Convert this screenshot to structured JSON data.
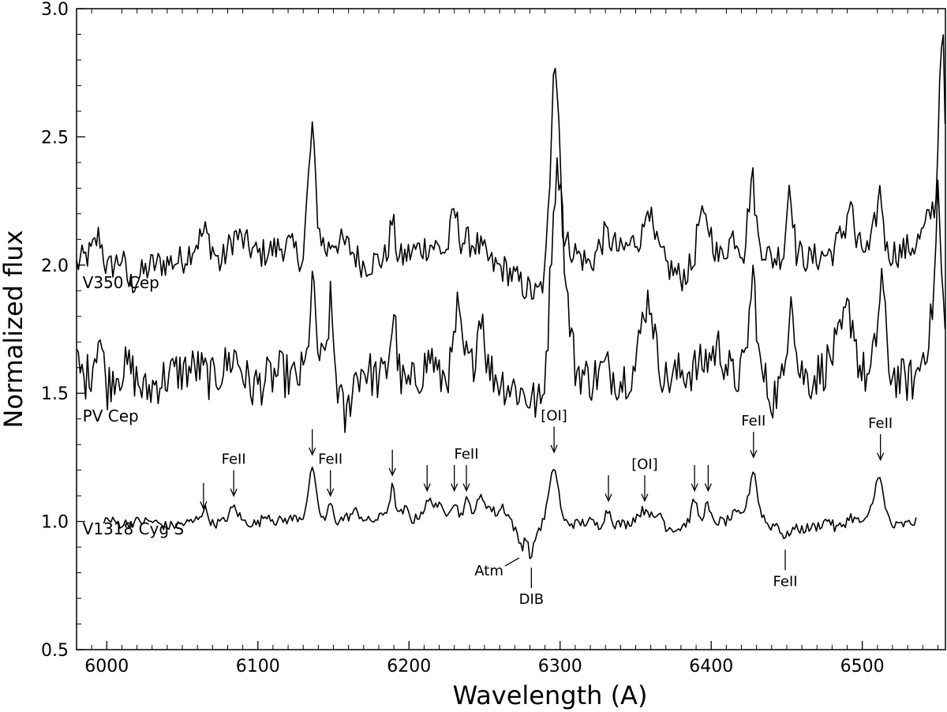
{
  "chart_data": {
    "type": "line",
    "xlabel": "Wavelength (A)",
    "ylabel": "Normalized flux",
    "xlim": [
      5980,
      6555
    ],
    "ylim": [
      0.5,
      3.0
    ],
    "x_ticks": [
      6000,
      6100,
      6200,
      6300,
      6400,
      6500
    ],
    "y_ticks": [
      "0.5",
      "1.0",
      "1.5",
      "2.0",
      "2.5",
      "3.0"
    ],
    "grid": false,
    "series": [
      {
        "name": "V350 Cep",
        "color": "#000000",
        "noise": 0.06,
        "label_at": [
          5984,
          1.91
        ],
        "points": [
          [
            5980,
            2.0
          ],
          [
            5990,
            2.05
          ],
          [
            5995,
            2.12
          ],
          [
            6000,
            1.98
          ],
          [
            6010,
            2.03
          ],
          [
            6015,
            1.92
          ],
          [
            6030,
            2.0
          ],
          [
            6050,
            2.02
          ],
          [
            6065,
            2.13
          ],
          [
            6075,
            2.0
          ],
          [
            6085,
            2.12
          ],
          [
            6100,
            2.04
          ],
          [
            6120,
            2.08
          ],
          [
            6130,
            2.02
          ],
          [
            6133,
            2.3
          ],
          [
            6136,
            2.54
          ],
          [
            6140,
            2.15
          ],
          [
            6145,
            2.05
          ],
          [
            6150,
            2.1
          ],
          [
            6160,
            2.07
          ],
          [
            6170,
            2.0
          ],
          [
            6185,
            2.03
          ],
          [
            6189,
            2.18
          ],
          [
            6193,
            2.02
          ],
          [
            6205,
            2.06
          ],
          [
            6215,
            2.08
          ],
          [
            6225,
            2.05
          ],
          [
            6230,
            2.22
          ],
          [
            6234,
            2.1
          ],
          [
            6245,
            2.08
          ],
          [
            6255,
            2.0
          ],
          [
            6265,
            1.98
          ],
          [
            6275,
            1.92
          ],
          [
            6285,
            1.88
          ],
          [
            6290,
            1.95
          ],
          [
            6293,
            2.3
          ],
          [
            6296,
            2.87
          ],
          [
            6299,
            2.6
          ],
          [
            6302,
            2.1
          ],
          [
            6310,
            2.05
          ],
          [
            6320,
            2.0
          ],
          [
            6330,
            2.12
          ],
          [
            6340,
            2.05
          ],
          [
            6355,
            2.12
          ],
          [
            6358,
            2.27
          ],
          [
            6362,
            2.1
          ],
          [
            6370,
            2.0
          ],
          [
            6380,
            1.95
          ],
          [
            6388,
            2.0
          ],
          [
            6392,
            2.18
          ],
          [
            6398,
            2.16
          ],
          [
            6405,
            2.02
          ],
          [
            6415,
            2.12
          ],
          [
            6422,
            2.05
          ],
          [
            6427,
            2.37
          ],
          [
            6431,
            2.1
          ],
          [
            6440,
            2.02
          ],
          [
            6448,
            2.05
          ],
          [
            6452,
            2.35
          ],
          [
            6456,
            2.05
          ],
          [
            6465,
            2.02
          ],
          [
            6480,
            2.05
          ],
          [
            6489,
            2.15
          ],
          [
            6492,
            2.27
          ],
          [
            6496,
            2.08
          ],
          [
            6505,
            2.05
          ],
          [
            6508,
            2.15
          ],
          [
            6512,
            2.3
          ],
          [
            6516,
            2.05
          ],
          [
            6525,
            2.05
          ],
          [
            6535,
            2.08
          ],
          [
            6540,
            2.12
          ],
          [
            6545,
            2.2
          ],
          [
            6549,
            2.25
          ],
          [
            6551,
            2.7
          ],
          [
            6553,
            2.99
          ],
          [
            6555,
            2.5
          ]
        ]
      },
      {
        "name": "PV Cep",
        "color": "#000000",
        "noise": 0.09,
        "label_at": [
          5984,
          1.39
        ],
        "points": [
          [
            5980,
            1.62
          ],
          [
            5985,
            1.55
          ],
          [
            5990,
            1.6
          ],
          [
            5995,
            1.74
          ],
          [
            6000,
            1.52
          ],
          [
            6005,
            1.58
          ],
          [
            6015,
            1.6
          ],
          [
            6025,
            1.5
          ],
          [
            6035,
            1.55
          ],
          [
            6045,
            1.58
          ],
          [
            6060,
            1.6
          ],
          [
            6070,
            1.55
          ],
          [
            6085,
            1.65
          ],
          [
            6095,
            1.52
          ],
          [
            6105,
            1.55
          ],
          [
            6115,
            1.58
          ],
          [
            6125,
            1.55
          ],
          [
            6132,
            1.6
          ],
          [
            6136,
            1.94
          ],
          [
            6140,
            1.65
          ],
          [
            6144,
            1.6
          ],
          [
            6148,
            1.85
          ],
          [
            6152,
            1.55
          ],
          [
            6158,
            1.38
          ],
          [
            6163,
            1.55
          ],
          [
            6170,
            1.6
          ],
          [
            6180,
            1.55
          ],
          [
            6185,
            1.58
          ],
          [
            6190,
            1.82
          ],
          [
            6194,
            1.55
          ],
          [
            6200,
            1.52
          ],
          [
            6210,
            1.6
          ],
          [
            6215,
            1.65
          ],
          [
            6220,
            1.55
          ],
          [
            6228,
            1.6
          ],
          [
            6232,
            1.82
          ],
          [
            6236,
            1.65
          ],
          [
            6242,
            1.6
          ],
          [
            6248,
            1.85
          ],
          [
            6252,
            1.6
          ],
          [
            6260,
            1.55
          ],
          [
            6270,
            1.52
          ],
          [
            6280,
            1.48
          ],
          [
            6288,
            1.45
          ],
          [
            6292,
            1.75
          ],
          [
            6296,
            2.3
          ],
          [
            6300,
            2.4
          ],
          [
            6304,
            1.9
          ],
          [
            6310,
            1.6
          ],
          [
            6320,
            1.55
          ],
          [
            6330,
            1.6
          ],
          [
            6340,
            1.55
          ],
          [
            6350,
            1.6
          ],
          [
            6356,
            1.85
          ],
          [
            6360,
            1.87
          ],
          [
            6364,
            1.65
          ],
          [
            6370,
            1.55
          ],
          [
            6380,
            1.58
          ],
          [
            6392,
            1.6
          ],
          [
            6405,
            1.68
          ],
          [
            6415,
            1.55
          ],
          [
            6422,
            1.6
          ],
          [
            6428,
            1.98
          ],
          [
            6432,
            1.6
          ],
          [
            6440,
            1.48
          ],
          [
            6448,
            1.55
          ],
          [
            6453,
            1.95
          ],
          [
            6457,
            1.6
          ],
          [
            6465,
            1.55
          ],
          [
            6475,
            1.6
          ],
          [
            6485,
            1.7
          ],
          [
            6490,
            1.82
          ],
          [
            6494,
            1.78
          ],
          [
            6498,
            1.6
          ],
          [
            6505,
            1.55
          ],
          [
            6509,
            1.7
          ],
          [
            6513,
            1.98
          ],
          [
            6517,
            1.6
          ],
          [
            6525,
            1.55
          ],
          [
            6535,
            1.55
          ],
          [
            6540,
            1.65
          ],
          [
            6545,
            1.75
          ],
          [
            6548,
            1.95
          ],
          [
            6550,
            2.3
          ],
          [
            6553,
            1.9
          ],
          [
            6555,
            1.7
          ]
        ]
      },
      {
        "name": "V1318 Cyg S",
        "color": "#000000",
        "noise": 0.02,
        "label_at": [
          5984,
          0.95
        ],
        "points": [
          [
            5998,
            1.01
          ],
          [
            6010,
            0.99
          ],
          [
            6020,
            1.0
          ],
          [
            6030,
            1.0
          ],
          [
            6040,
            0.98
          ],
          [
            6050,
            0.99
          ],
          [
            6058,
            1.0
          ],
          [
            6065,
            1.05
          ],
          [
            6070,
            0.99
          ],
          [
            6078,
            1.0
          ],
          [
            6084,
            1.06
          ],
          [
            6090,
            1.0
          ],
          [
            6100,
            0.99
          ],
          [
            6106,
            1.03
          ],
          [
            6112,
            1.0
          ],
          [
            6122,
            1.01
          ],
          [
            6130,
            1.02
          ],
          [
            6133,
            1.1
          ],
          [
            6136,
            1.22
          ],
          [
            6140,
            1.05
          ],
          [
            6144,
            1.0
          ],
          [
            6148,
            1.07
          ],
          [
            6152,
            1.0
          ],
          [
            6160,
            1.02
          ],
          [
            6165,
            1.04
          ],
          [
            6172,
            1.0
          ],
          [
            6180,
            1.01
          ],
          [
            6186,
            1.05
          ],
          [
            6189,
            1.14
          ],
          [
            6193,
            1.02
          ],
          [
            6198,
            1.05
          ],
          [
            6203,
            1.0
          ],
          [
            6210,
            1.05
          ],
          [
            6213,
            1.08
          ],
          [
            6218,
            1.07
          ],
          [
            6224,
            1.03
          ],
          [
            6230,
            1.08
          ],
          [
            6234,
            1.02
          ],
          [
            6238,
            1.08
          ],
          [
            6243,
            1.04
          ],
          [
            6248,
            1.1
          ],
          [
            6252,
            1.06
          ],
          [
            6258,
            1.03
          ],
          [
            6262,
            1.06
          ],
          [
            6268,
            1.0
          ],
          [
            6273,
            0.92
          ],
          [
            6275,
            0.9
          ],
          [
            6277,
            0.95
          ],
          [
            6281,
            0.85
          ],
          [
            6284,
            0.95
          ],
          [
            6289,
            1.0
          ],
          [
            6293,
            1.12
          ],
          [
            6296,
            1.23
          ],
          [
            6299,
            1.12
          ],
          [
            6302,
            1.0
          ],
          [
            6310,
            0.99
          ],
          [
            6320,
            1.0
          ],
          [
            6326,
            0.98
          ],
          [
            6332,
            1.05
          ],
          [
            6336,
            0.99
          ],
          [
            6345,
            0.99
          ],
          [
            6354,
            1.04
          ],
          [
            6358,
            1.05
          ],
          [
            6362,
            1.0
          ],
          [
            6366,
            1.04
          ],
          [
            6370,
            0.98
          ],
          [
            6378,
            0.97
          ],
          [
            6385,
            1.0
          ],
          [
            6389,
            1.09
          ],
          [
            6393,
            1.0
          ],
          [
            6397,
            1.07
          ],
          [
            6401,
            1.0
          ],
          [
            6410,
            1.0
          ],
          [
            6416,
            1.03
          ],
          [
            6420,
            1.02
          ],
          [
            6424,
            1.08
          ],
          [
            6428,
            1.22
          ],
          [
            6432,
            1.05
          ],
          [
            6438,
            0.98
          ],
          [
            6444,
            0.99
          ],
          [
            6449,
            0.93
          ],
          [
            6453,
            0.97
          ],
          [
            6460,
            0.97
          ],
          [
            6470,
            0.98
          ],
          [
            6478,
            1.01
          ],
          [
            6482,
            0.97
          ],
          [
            6488,
            0.99
          ],
          [
            6492,
            1.02
          ],
          [
            6497,
            1.0
          ],
          [
            6503,
            1.0
          ],
          [
            6508,
            1.1
          ],
          [
            6511,
            1.21
          ],
          [
            6515,
            1.05
          ],
          [
            6520,
            0.98
          ],
          [
            6530,
            0.99
          ],
          [
            6536,
            1.0
          ]
        ]
      }
    ],
    "annotations": [
      {
        "x": 6064,
        "dir": "down",
        "tip": 1.05,
        "length": 0.1,
        "label": ""
      },
      {
        "x": 6084,
        "dir": "down",
        "tip": 1.1,
        "length": 0.1,
        "label": "FeII"
      },
      {
        "x": 6136,
        "dir": "down",
        "tip": 1.26,
        "length": 0.1,
        "label": ""
      },
      {
        "x": 6148,
        "dir": "down",
        "tip": 1.1,
        "length": 0.1,
        "label": "FeII"
      },
      {
        "x": 6189,
        "dir": "down",
        "tip": 1.18,
        "length": 0.1,
        "label": ""
      },
      {
        "x": 6212,
        "dir": "down",
        "tip": 1.12,
        "length": 0.1,
        "label": ""
      },
      {
        "x": 6230,
        "dir": "down",
        "tip": 1.12,
        "length": 0.1,
        "label": ""
      },
      {
        "x": 6238,
        "dir": "down",
        "tip": 1.12,
        "length": 0.1,
        "label": "FeII"
      },
      {
        "x": 6296,
        "dir": "down",
        "tip": 1.27,
        "length": 0.1,
        "label": "[OI]"
      },
      {
        "x": 6332,
        "dir": "down",
        "tip": 1.08,
        "length": 0.1,
        "label": ""
      },
      {
        "x": 6356,
        "dir": "down",
        "tip": 1.08,
        "length": 0.1,
        "label": "[OI]"
      },
      {
        "x": 6389,
        "dir": "down",
        "tip": 1.12,
        "length": 0.1,
        "label": ""
      },
      {
        "x": 6398,
        "dir": "down",
        "tip": 1.12,
        "length": 0.1,
        "label": ""
      },
      {
        "x": 6428,
        "dir": "down",
        "tip": 1.25,
        "length": 0.1,
        "label": "FeII"
      },
      {
        "x": 6512,
        "dir": "down",
        "tip": 1.24,
        "length": 0.1,
        "label": "FeII"
      },
      {
        "x": 6449,
        "dir": "up",
        "tip": 0.89,
        "length": 0.08,
        "label": "FeII"
      },
      {
        "x": 6281,
        "dir": "up",
        "tip": 0.82,
        "length": 0.08,
        "label": "DIB"
      },
      {
        "x": 6275,
        "dir": "diag",
        "tip": 0.87,
        "length": 0.08,
        "label": "Atm"
      }
    ]
  }
}
